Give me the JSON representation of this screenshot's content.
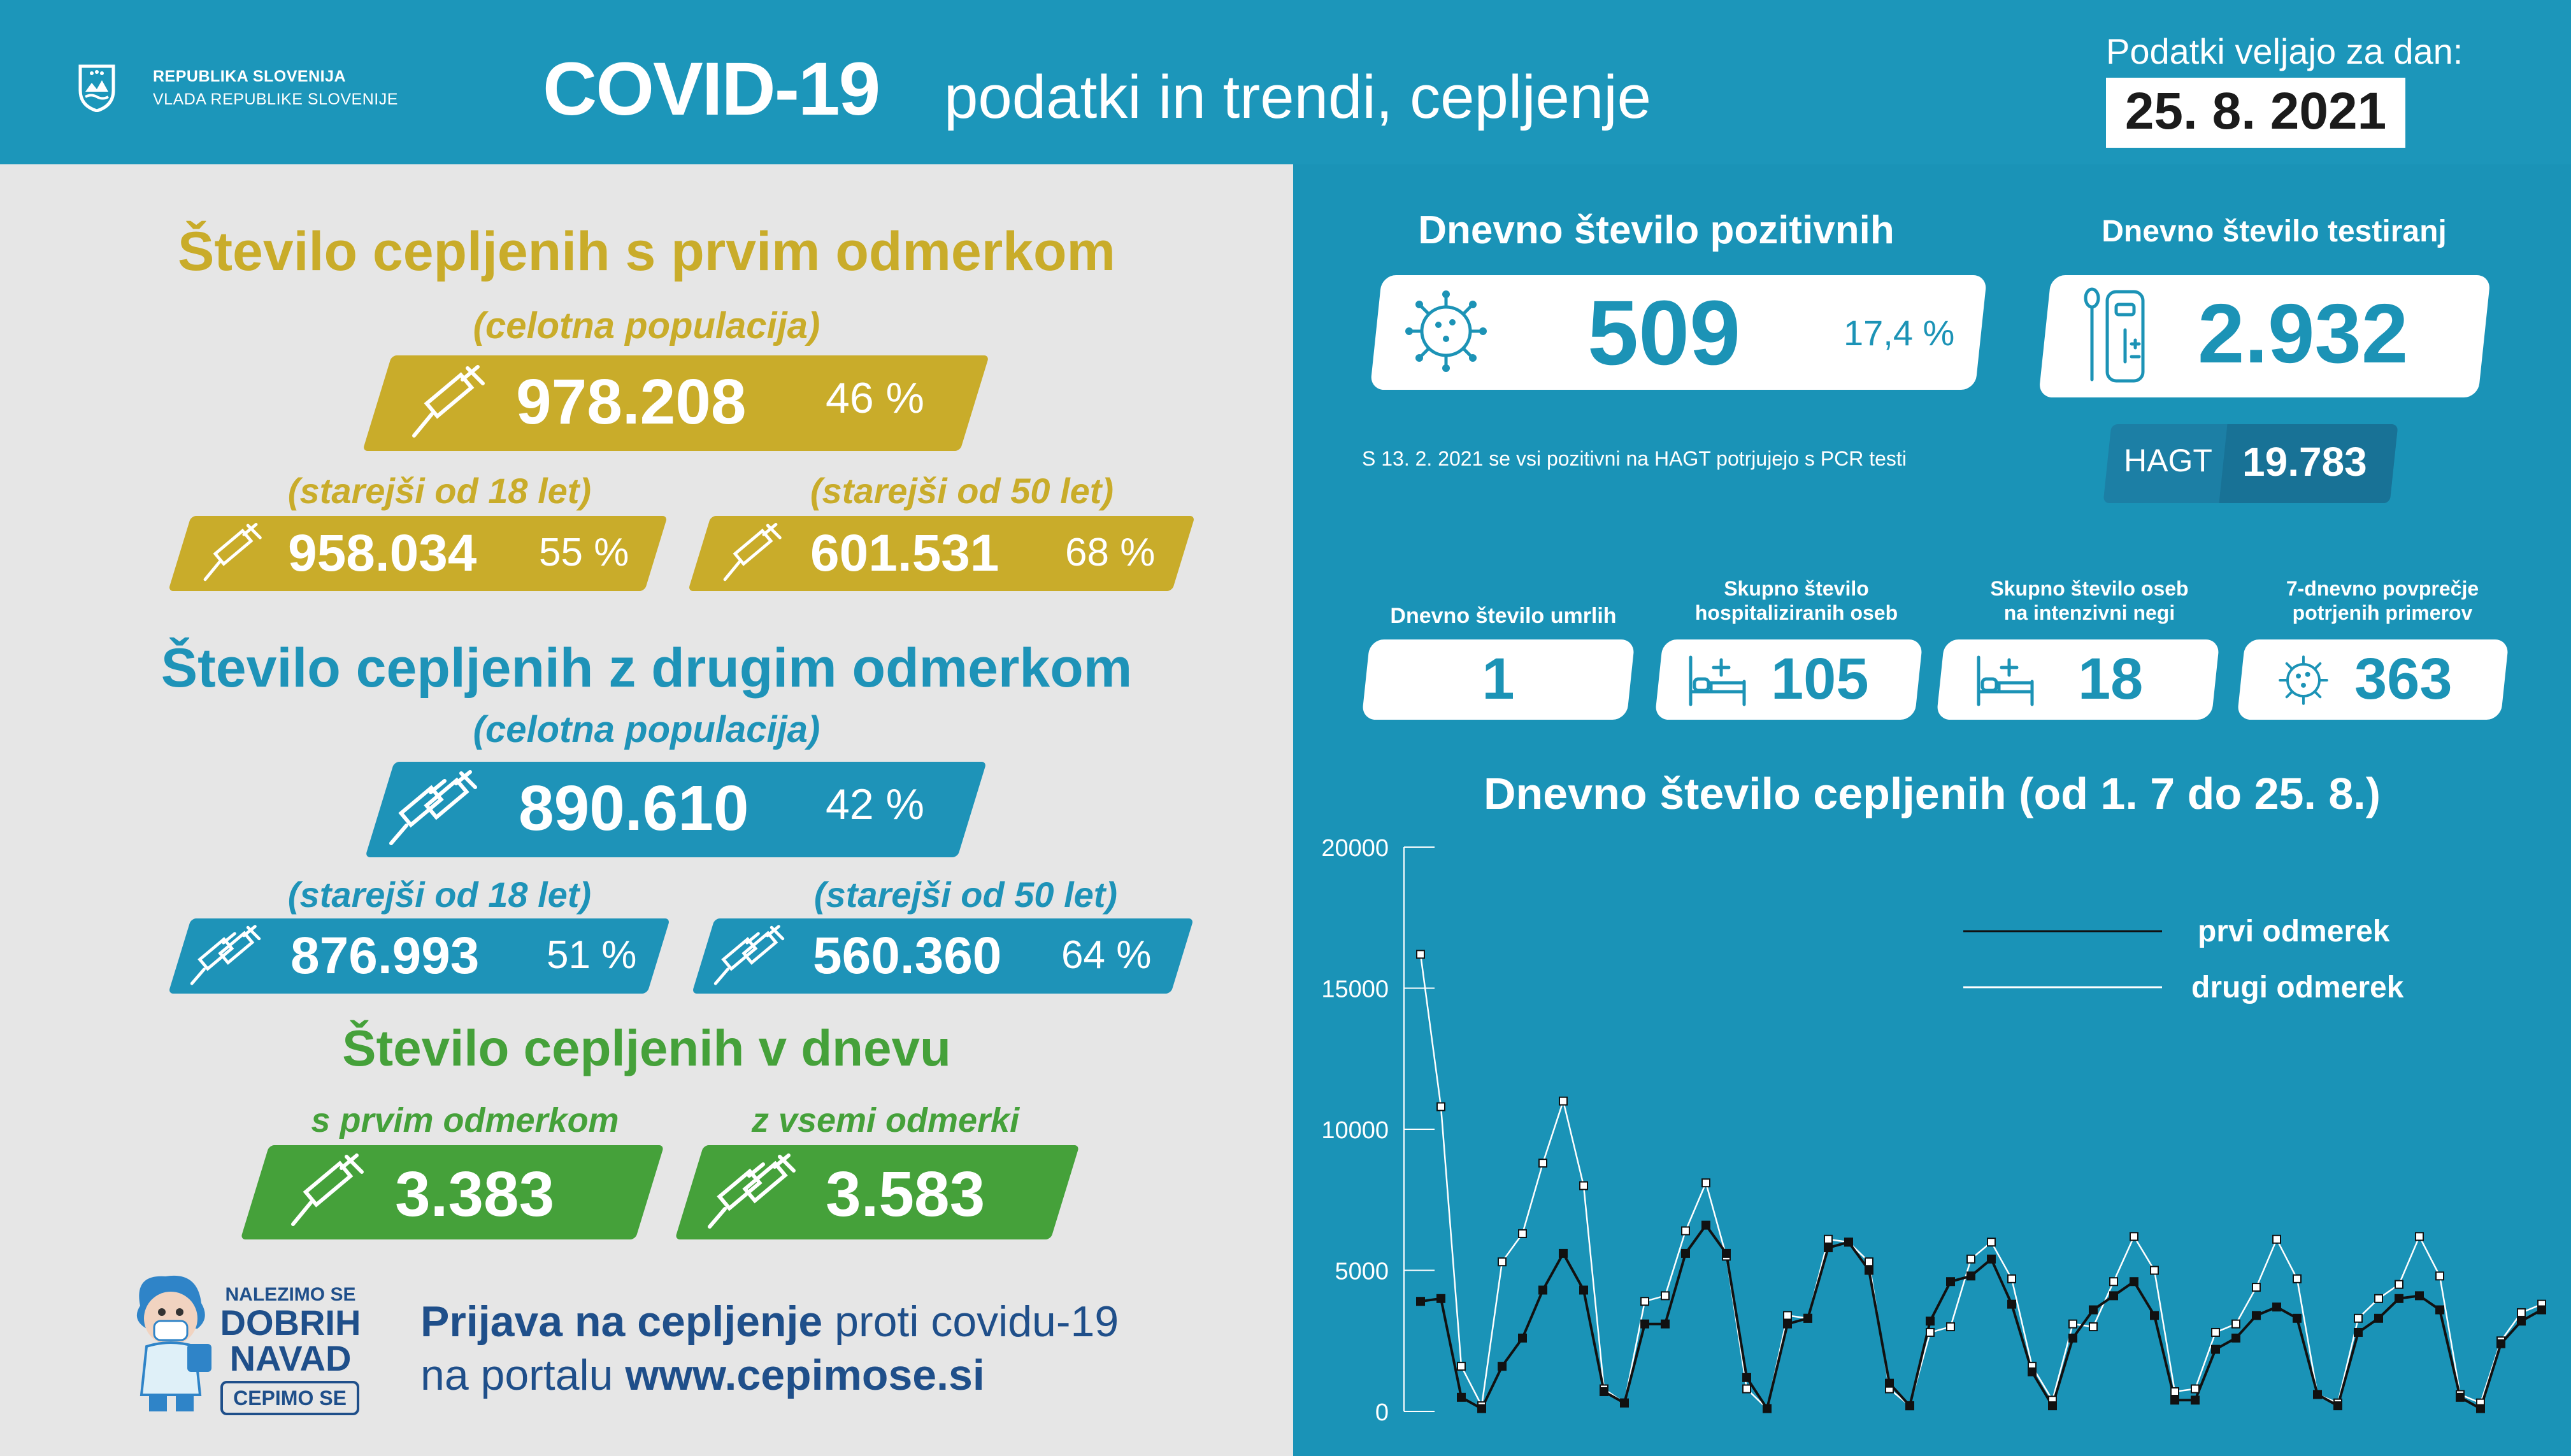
{
  "header": {
    "gov_line1": "REPUBLIKA SLOVENIJA",
    "gov_line2": "VLADA REPUBLIKE SLOVENIJE",
    "title_main": "COVID-19",
    "title_sub": "podatki in trendi, cepljenje",
    "date_caption": "Podatki veljajo za dan:",
    "date": "25. 8. 2021",
    "crest_icon": "coat-of-arms-icon"
  },
  "first_dose": {
    "heading": "Število cepljenih s prvim odmerkom",
    "population_label": "(celotna populacija)",
    "total": "978.208",
    "total_pct": "46 %",
    "age18_label": "(starejši od 18 let)",
    "age18": "958.034",
    "age18_pct": "55 %",
    "age50_label": "(starejši od 50 let)",
    "age50": "601.531",
    "age50_pct": "68 %",
    "color": "#c9ac2a",
    "icon": "syringe-icon"
  },
  "second_dose": {
    "heading": "Število cepljenih z drugim odmerkom",
    "population_label": "(celotna populacija)",
    "total": "890.610",
    "total_pct": "42 %",
    "age18_label": "(starejši od 18 let)",
    "age18": "876.993",
    "age18_pct": "51 %",
    "age50_label": "(starejši od 50 let)",
    "age50": "560.360",
    "age50_pct": "64 %",
    "color": "#1e93b8",
    "icon": "double-syringe-icon"
  },
  "daily_vaccinated": {
    "heading": "Število cepljenih v dnevu",
    "first_label": "s prvim odmerkom",
    "first_value": "3.383",
    "all_label": "z vsemi odmerki",
    "all_value": "3.583",
    "color": "#45a13a"
  },
  "promo": {
    "badge_line1": "NALEZIMO SE",
    "badge_line2": "DOBRIH",
    "badge_line3": "NAVAD",
    "badge_tag": "CEPIMO SE",
    "line1_bold": "Prijava na cepljenje",
    "line1_rest": "proti covidu-19",
    "line2_rest": "na portalu",
    "line2_bold": "www.cepimose.si",
    "mascot_icon": "mascot-icon"
  },
  "positives": {
    "label": "Dnevno število pozitivnih",
    "value": "509",
    "pct": "17,4 %",
    "note": "S 13. 2. 2021 se vsi pozitivni na HAGT potrjujejo s PCR testi",
    "icon": "virus-icon"
  },
  "tests": {
    "label": "Dnevno število testiranj",
    "value": "2.932",
    "hagt_label": "HAGT",
    "hagt_value": "19.783",
    "icon": "test-kit-icon"
  },
  "stats": {
    "deaths_label": "Dnevno število umrlih",
    "deaths": "1",
    "hosp_label_1": "Skupno število",
    "hosp_label_2": "hospitaliziranih oseb",
    "hosp": "105",
    "icu_label_1": "Skupno število oseb",
    "icu_label_2": "na intenzivni negi",
    "icu": "18",
    "avg_label_1": "7-dnevno povprečje",
    "avg_label_2": "potrjenih primerov",
    "avg": "363"
  },
  "chart_data": {
    "type": "line",
    "title": "Dnevno število cepljenih (od 1. 7 do 25. 8.)",
    "xlabel": "",
    "ylabel": "",
    "ylim": [
      0,
      20000
    ],
    "yticks": [
      "20000",
      "15000",
      "10000",
      "5000",
      "0"
    ],
    "x": [
      "1.7",
      "2.7",
      "3.7",
      "4.7",
      "5.7",
      "6.7",
      "7.7",
      "8.7",
      "9.7",
      "10.7",
      "11.7",
      "12.7",
      "13.7",
      "14.7",
      "15.7",
      "16.7",
      "17.7",
      "18.7",
      "19.7",
      "20.7",
      "21.7",
      "22.7",
      "23.7",
      "24.7",
      "25.7",
      "26.7",
      "27.7",
      "28.7",
      "29.7",
      "30.7",
      "31.7",
      "1.8",
      "2.8",
      "3.8",
      "4.8",
      "5.8",
      "6.8",
      "7.8",
      "8.8",
      "9.8",
      "10.8",
      "11.8",
      "12.8",
      "13.8",
      "14.8",
      "15.8",
      "16.8",
      "17.8",
      "18.8",
      "19.8",
      "20.8",
      "21.8",
      "22.8",
      "23.8",
      "24.8",
      "25.8"
    ],
    "legend_position": "top-right",
    "series": [
      {
        "name": "prvi odmerek",
        "color": "#111111",
        "values": [
          3900,
          4000,
          500,
          100,
          1600,
          2600,
          4300,
          5600,
          4300,
          700,
          300,
          3100,
          3100,
          5600,
          6600,
          5600,
          1200,
          100,
          3100,
          3300,
          5800,
          6000,
          5000,
          1000,
          200,
          3200,
          4600,
          4800,
          5400,
          3800,
          1400,
          200,
          2600,
          3600,
          4100,
          4600,
          3400,
          400,
          400,
          2200,
          2600,
          3400,
          3700,
          3300,
          600,
          200,
          2800,
          3300,
          4000,
          4100,
          3600,
          500,
          100,
          2400,
          3200,
          3600
        ]
      },
      {
        "name": "drugi odmerek",
        "color": "#ffffff",
        "values": [
          16200,
          10800,
          1600,
          200,
          5300,
          6300,
          8800,
          11000,
          8000,
          800,
          300,
          3900,
          4100,
          6400,
          8100,
          5500,
          800,
          100,
          3400,
          3300,
          6100,
          6000,
          5300,
          800,
          200,
          2800,
          3000,
          5400,
          6000,
          4700,
          1600,
          400,
          3100,
          3000,
          4600,
          6200,
          5000,
          700,
          800,
          2800,
          3100,
          4400,
          6100,
          4700,
          600,
          300,
          3300,
          4000,
          4500,
          6200,
          4800,
          600,
          300,
          2500,
          3500,
          3800
        ]
      }
    ]
  }
}
